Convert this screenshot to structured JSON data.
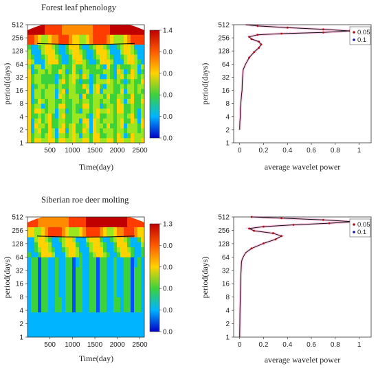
{
  "chart_data": [
    {
      "type": "heatmap",
      "title": "Forest leaf phenology",
      "xlabel": "Time(day)",
      "ylabel": "period(days)",
      "x_ticks": [
        500,
        1000,
        1500,
        2000,
        2500
      ],
      "x_range": [
        1,
        2600
      ],
      "y_ticks": [
        1,
        2,
        4,
        8,
        16,
        32,
        64,
        128,
        256,
        512
      ],
      "y_scale": "log2",
      "colorbar": {
        "ticks": [
          "1.4",
          "0.0",
          "0.0",
          "0.0",
          "0.0",
          "0.0"
        ],
        "colors": [
          "#c00000",
          "#ff5a00",
          "#ffd200",
          "#3cd23c",
          "#00b4ff",
          "#0000c8"
        ]
      },
      "description": "wavelet power spectrum"
    },
    {
      "type": "line",
      "title": "",
      "xlabel": "average wavelet power",
      "ylabel": "period(days)",
      "x_ticks": [
        0,
        0.2,
        0.4,
        0.6,
        0.8,
        1
      ],
      "xlim": [
        -0.05,
        1.1
      ],
      "y_ticks": [
        1,
        2,
        4,
        8,
        16,
        32,
        64,
        128,
        256,
        512
      ],
      "y_scale": "log2",
      "legend": [
        "0.05",
        "0.1"
      ],
      "legend_colors": [
        "#b01010",
        "#1010b0"
      ],
      "series": [
        {
          "x": [
            0.0,
            0.002,
            0.005,
            0.005,
            0.01,
            0.015,
            0.02,
            0.022,
            0.025,
            0.03,
            0.05,
            0.08,
            0.12,
            0.16,
            0.18,
            0.16,
            0.1,
            0.08,
            0.15,
            0.35,
            0.7,
            0.92,
            0.7,
            0.4,
            0.15,
            0.05
          ],
          "y": [
            2,
            3,
            4,
            6,
            8,
            12,
            16,
            24,
            32,
            48,
            64,
            90,
            120,
            150,
            180,
            210,
            240,
            270,
            300,
            320,
            340,
            370,
            400,
            440,
            480,
            512
          ]
        }
      ]
    },
    {
      "type": "heatmap",
      "title": "Siberian roe deer molting",
      "xlabel": "Time(day)",
      "ylabel": "period(days)",
      "x_ticks": [
        500,
        1000,
        1500,
        2000,
        2500
      ],
      "x_range": [
        1,
        2600
      ],
      "y_ticks": [
        1,
        2,
        4,
        8,
        16,
        32,
        64,
        128,
        256,
        512
      ],
      "y_scale": "log2",
      "colorbar": {
        "ticks": [
          "1.3",
          "0.0",
          "0.0",
          "0.0",
          "0.0",
          "0.0"
        ],
        "colors": [
          "#c00000",
          "#ff5a00",
          "#ffd200",
          "#3cd23c",
          "#00b4ff",
          "#0000c8"
        ]
      },
      "description": "wavelet power spectrum"
    },
    {
      "type": "line",
      "title": "",
      "xlabel": "average wavelet power",
      "ylabel": "period(days)",
      "x_ticks": [
        0,
        0.2,
        0.4,
        0.6,
        0.8,
        1
      ],
      "xlim": [
        -0.05,
        1.1
      ],
      "y_ticks": [
        1,
        2,
        4,
        8,
        16,
        32,
        64,
        128,
        256,
        512
      ],
      "y_scale": "log2",
      "legend": [
        "0.05",
        "0.1"
      ],
      "legend_colors": [
        "#b01010",
        "#1010b0"
      ],
      "series": [
        {
          "x": [
            0.0,
            0.002,
            0.003,
            0.005,
            0.008,
            0.01,
            0.012,
            0.015,
            0.02,
            0.03,
            0.05,
            0.1,
            0.2,
            0.3,
            0.35,
            0.28,
            0.12,
            0.08,
            0.2,
            0.45,
            0.75,
            0.95,
            0.7,
            0.35,
            0.1
          ],
          "y": [
            1,
            2,
            4,
            8,
            16,
            24,
            32,
            48,
            56,
            64,
            80,
            100,
            130,
            160,
            190,
            220,
            250,
            280,
            310,
            340,
            370,
            400,
            440,
            480,
            512
          ]
        }
      ]
    }
  ]
}
